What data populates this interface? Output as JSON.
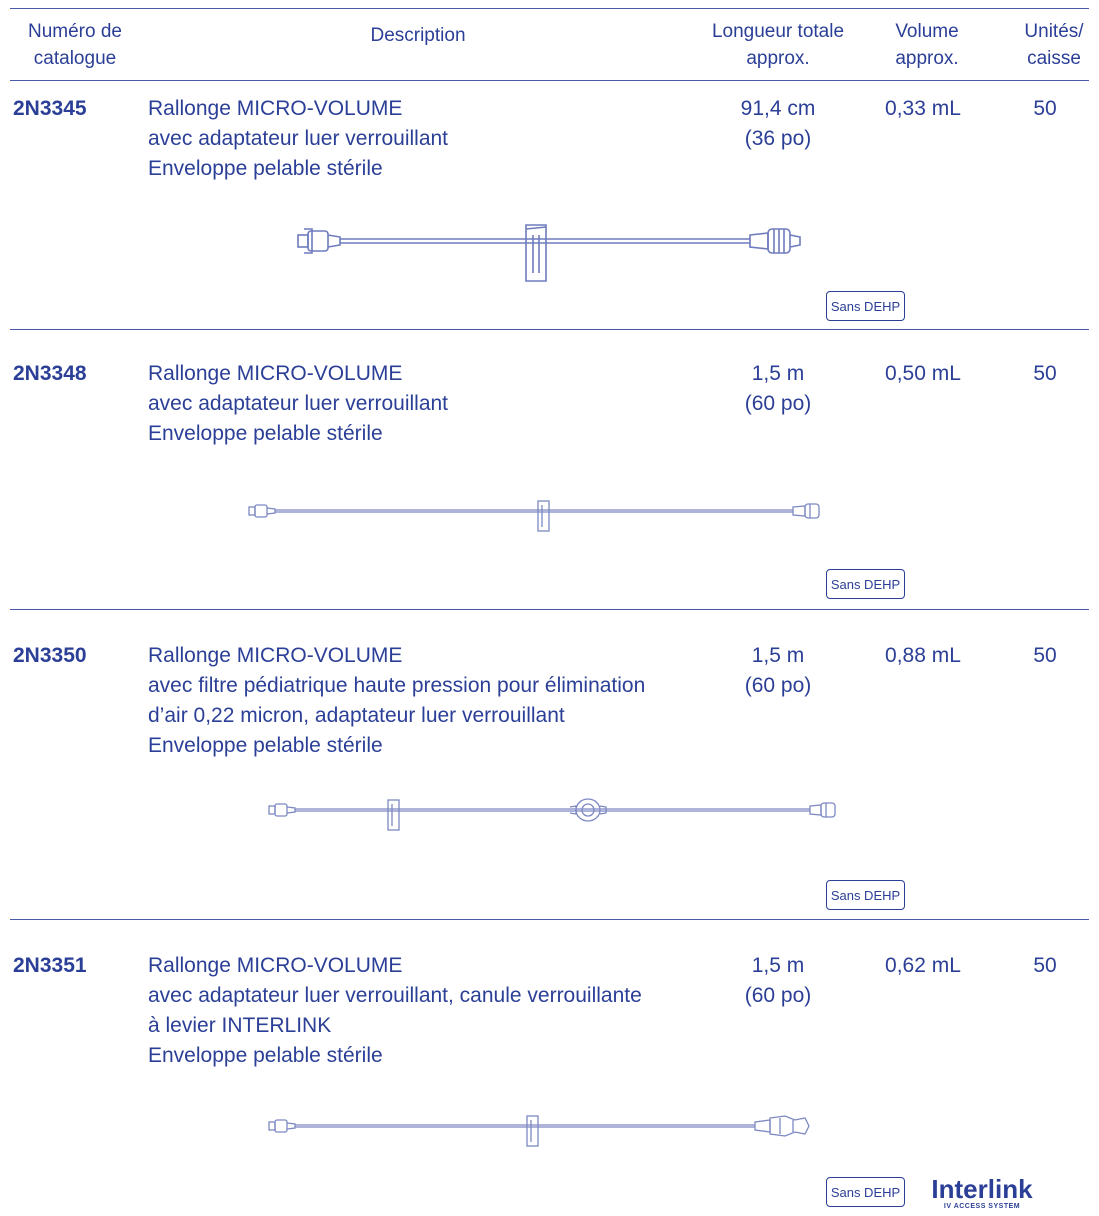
{
  "header": {
    "catalog": [
      "Numéro de",
      "catalogue"
    ],
    "description": "Description",
    "length": [
      "Longueur totale",
      "approx."
    ],
    "volume": [
      "Volume",
      "approx."
    ],
    "units": [
      "Unités/",
      "caisse"
    ]
  },
  "products": [
    {
      "catalog": "2N3345",
      "description": [
        "Rallonge MICRO-VOLUME",
        "avec adaptateur luer verrouillant",
        "Enveloppe pelable stérile"
      ],
      "length": [
        "91,4 cm",
        "(36 po)"
      ],
      "volume": "0,33 mL",
      "units": "50",
      "badge": "Sans DEHP"
    },
    {
      "catalog": "2N3348",
      "description": [
        "Rallonge MICRO-VOLUME",
        "avec adaptateur luer verrouillant",
        "Enveloppe pelable stérile"
      ],
      "length": [
        "1,5 m",
        "(60 po)"
      ],
      "volume": "0,50 mL",
      "units": "50",
      "badge": "Sans DEHP"
    },
    {
      "catalog": "2N3350",
      "description": [
        "Rallonge MICRO-VOLUME",
        "avec filtre pédiatrique haute pression pour élimination",
        "d’air 0,22 micron, adaptateur luer verrouillant",
        "Enveloppe pelable stérile"
      ],
      "length": [
        "1,5 m",
        "(60 po)"
      ],
      "volume": "0,88 mL",
      "units": "50",
      "badge": "Sans DEHP"
    },
    {
      "catalog": "2N3351",
      "description": [
        "Rallonge MICRO-VOLUME",
        "avec adaptateur luer verrouillant, canule verrouillante",
        "à levier INTERLINK",
        "Enveloppe pelable stérile"
      ],
      "length": [
        "1,5 m",
        "(60 po)"
      ],
      "volume": "0,62 mL",
      "units": "50",
      "badge": "Sans DEHP"
    }
  ],
  "logo": {
    "name": "Interlink",
    "tagline": "IV ACCESS SYSTEM"
  },
  "colors": {
    "text": "#2b3f97",
    "rule": "#4a5aa8",
    "illustration": "#7d88c2"
  }
}
